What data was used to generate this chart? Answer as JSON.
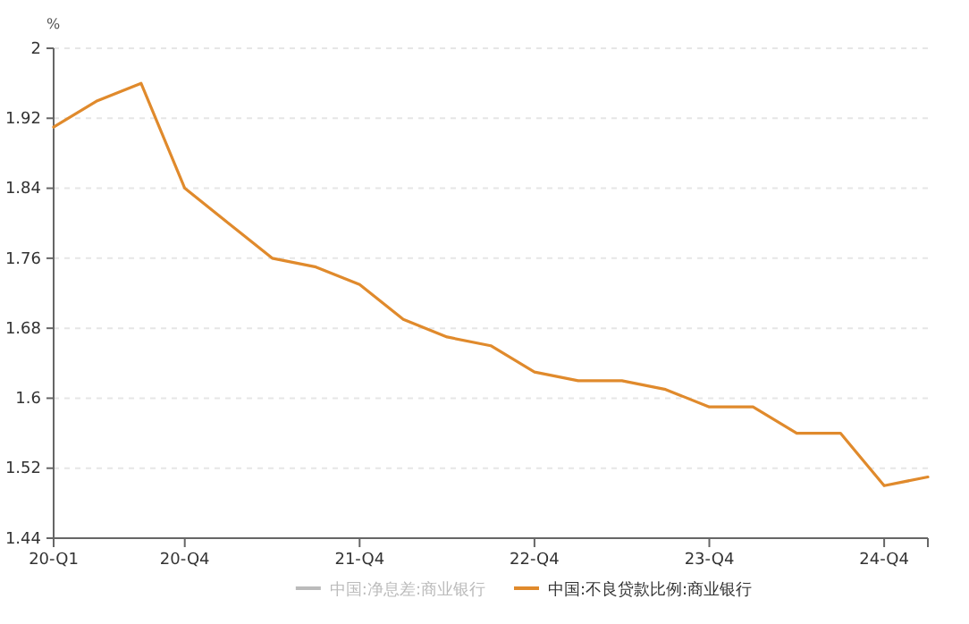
{
  "chart_data": {
    "type": "line",
    "ylabel": "%",
    "categories": [
      "20-Q1",
      null,
      null,
      "20-Q4",
      null,
      null,
      null,
      "21-Q4",
      null,
      null,
      null,
      "22-Q4",
      null,
      null,
      null,
      "23-Q4",
      null,
      null,
      null,
      "24-Q4",
      null
    ],
    "series": [
      {
        "name": "中国:净息差:商业银行",
        "color": "#bbbbbb",
        "values": [
          null,
          null,
          null,
          null,
          null,
          null,
          null,
          null,
          null,
          null,
          null,
          null,
          null,
          null,
          null,
          null,
          null,
          null,
          null,
          null,
          null
        ]
      },
      {
        "name": "中国:不良贷款比例:商业银行",
        "color": "#e08a2c",
        "values": [
          1.91,
          1.94,
          1.96,
          1.84,
          1.8,
          1.76,
          1.75,
          1.73,
          1.69,
          1.67,
          1.66,
          1.63,
          1.62,
          1.62,
          1.61,
          1.59,
          1.59,
          1.56,
          1.56,
          1.5,
          1.51
        ]
      }
    ],
    "ylim": [
      1.44,
      2
    ],
    "yticks": [
      1.44,
      1.52,
      1.6,
      1.68,
      1.76,
      1.84,
      1.92,
      2
    ],
    "grid": "y",
    "legend": "bottom",
    "marker": "none",
    "line_style": "solid"
  }
}
